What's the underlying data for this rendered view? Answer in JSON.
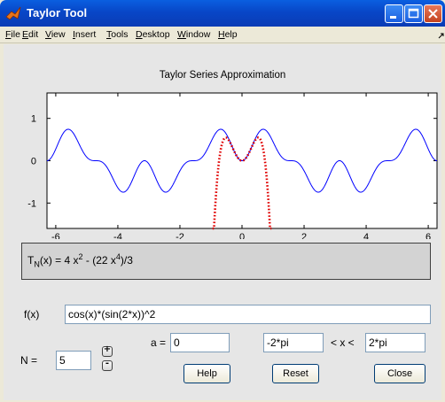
{
  "window": {
    "title": "Taylor Tool"
  },
  "menu": [
    "File",
    "Edit",
    "View",
    "Insert",
    "Tools",
    "Desktop",
    "Window",
    "Help"
  ],
  "plot": {
    "title": "Taylor Series Approximation",
    "colors": {
      "function": "#0000ff",
      "taylor": "#e00000"
    }
  },
  "chart_data": {
    "type": "line",
    "title": "Taylor Series Approximation",
    "xlim": [
      -6.283,
      6.283
    ],
    "ylim": [
      -1.6,
      1.6
    ],
    "x_ticks": [
      "-6",
      "-4",
      "-2",
      "0",
      "2",
      "4",
      "6"
    ],
    "y_ticks": [
      "1",
      "0",
      "-1"
    ],
    "series": [
      {
        "expression": "cos(x)*(sin(2*x))^2",
        "style": "solid",
        "color": "#0000ff"
      },
      {
        "expression": "4 x^2 - (22 x^4)/3",
        "style": "dotted",
        "color": "#e00000"
      }
    ]
  },
  "formula": {
    "prefix": "T",
    "sub": "N",
    "mid": "(x) =  4 x",
    "sup1": "2",
    "mid2": " - (22 x",
    "sup2": "4",
    "end": ")/3"
  },
  "fx": {
    "label": "f(x)",
    "value": "cos(x)*(sin(2*x))^2"
  },
  "a": {
    "label": "a =",
    "value": "0"
  },
  "range": {
    "low": "-2*pi",
    "between": "< x <",
    "high": "2*pi"
  },
  "n": {
    "label": "N =",
    "value": "5",
    "inc": "+",
    "dec": "-"
  },
  "buttons": {
    "help": "Help",
    "reset": "Reset",
    "close": "Close"
  }
}
